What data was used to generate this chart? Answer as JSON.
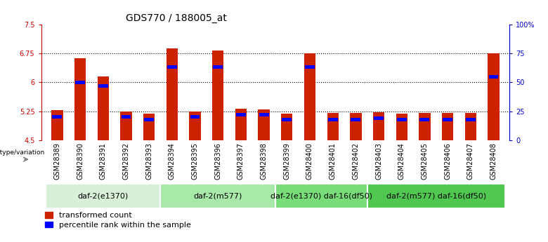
{
  "title": "GDS770 / 188005_at",
  "samples": [
    "GSM28389",
    "GSM28390",
    "GSM28391",
    "GSM28392",
    "GSM28393",
    "GSM28394",
    "GSM28395",
    "GSM28396",
    "GSM28397",
    "GSM28398",
    "GSM28399",
    "GSM28400",
    "GSM28401",
    "GSM28402",
    "GSM28403",
    "GSM28404",
    "GSM28405",
    "GSM28406",
    "GSM28407",
    "GSM28408"
  ],
  "red_values": [
    5.28,
    6.63,
    6.15,
    5.25,
    5.19,
    6.87,
    5.25,
    6.82,
    5.32,
    5.3,
    5.19,
    6.75,
    5.21,
    5.21,
    5.22,
    5.19,
    5.2,
    5.21,
    5.21,
    6.75
  ],
  "blue_pct": [
    20,
    50,
    47,
    20,
    18,
    63,
    20,
    63,
    22,
    22,
    18,
    63,
    18,
    18,
    19,
    18,
    18,
    18,
    18,
    55
  ],
  "ylim_left": [
    4.5,
    7.5
  ],
  "yticks_left": [
    4.5,
    5.25,
    6.0,
    6.75,
    7.5
  ],
  "yticks_right": [
    0,
    25,
    50,
    75,
    100
  ],
  "ytick_labels_right": [
    "0",
    "25",
    "50",
    "75",
    "100%"
  ],
  "groups": [
    {
      "label": "daf-2(e1370)",
      "start": 0,
      "end": 4,
      "color": "#d8f0d8"
    },
    {
      "label": "daf-2(m577)",
      "start": 5,
      "end": 9,
      "color": "#a8e8a8"
    },
    {
      "label": "daf-2(e1370) daf-16(df50)",
      "start": 10,
      "end": 13,
      "color": "#78dc78"
    },
    {
      "label": "daf-2(m577) daf-16(df50)",
      "start": 14,
      "end": 19,
      "color": "#50c850"
    }
  ],
  "bar_width": 0.5,
  "bar_bottom": 4.5,
  "group_label": "genotype/variation",
  "legend_red": "transformed count",
  "legend_blue": "percentile rank within the sample",
  "left_axis_color": "#cc0000",
  "right_axis_color": "#0000cc",
  "title_fontsize": 10,
  "tick_fontsize": 7,
  "group_fontsize": 8,
  "legend_fontsize": 8,
  "xtick_bg": "#c8c8c8"
}
